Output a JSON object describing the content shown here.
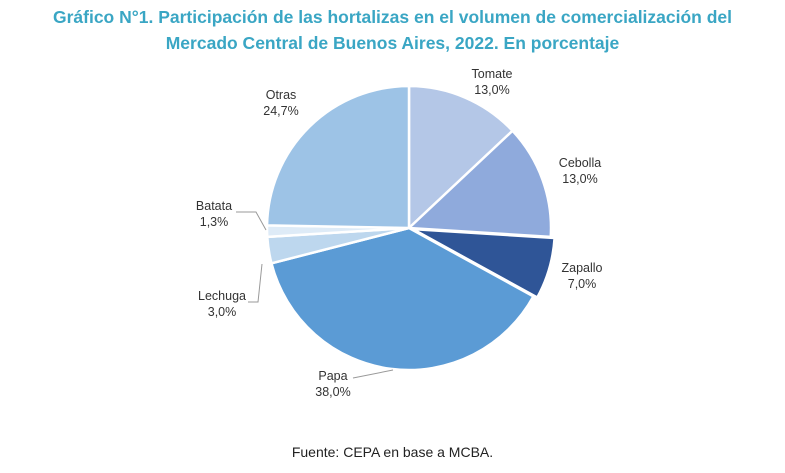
{
  "chart_data": {
    "type": "pie",
    "title_line1": "Gráfico N°1. Participación de las hortalizas en el volumen de comercialización del",
    "title_line2": "Mercado Central de Buenos Aires, 2022. En porcentaje",
    "slices": [
      {
        "name": "Tomate",
        "value": 13.0,
        "label": "13,0%",
        "color": "#b4c7e7"
      },
      {
        "name": "Cebolla",
        "value": 13.0,
        "label": "13,0%",
        "color": "#8faadc"
      },
      {
        "name": "Zapallo",
        "value": 7.0,
        "label": "7,0%",
        "color": "#2f5597"
      },
      {
        "name": "Papa",
        "value": 38.0,
        "label": "38,0%",
        "color": "#5b9bd5"
      },
      {
        "name": "Lechuga",
        "value": 3.0,
        "label": "3,0%",
        "color": "#bdd7ee"
      },
      {
        "name": "Batata",
        "value": 1.3,
        "label": "1,3%",
        "color": "#deebf7"
      },
      {
        "name": "Otras",
        "value": 24.7,
        "label": "24,7%",
        "color": "#9dc3e6"
      }
    ],
    "source": "Fuente: CEPA en base a MCBA."
  }
}
